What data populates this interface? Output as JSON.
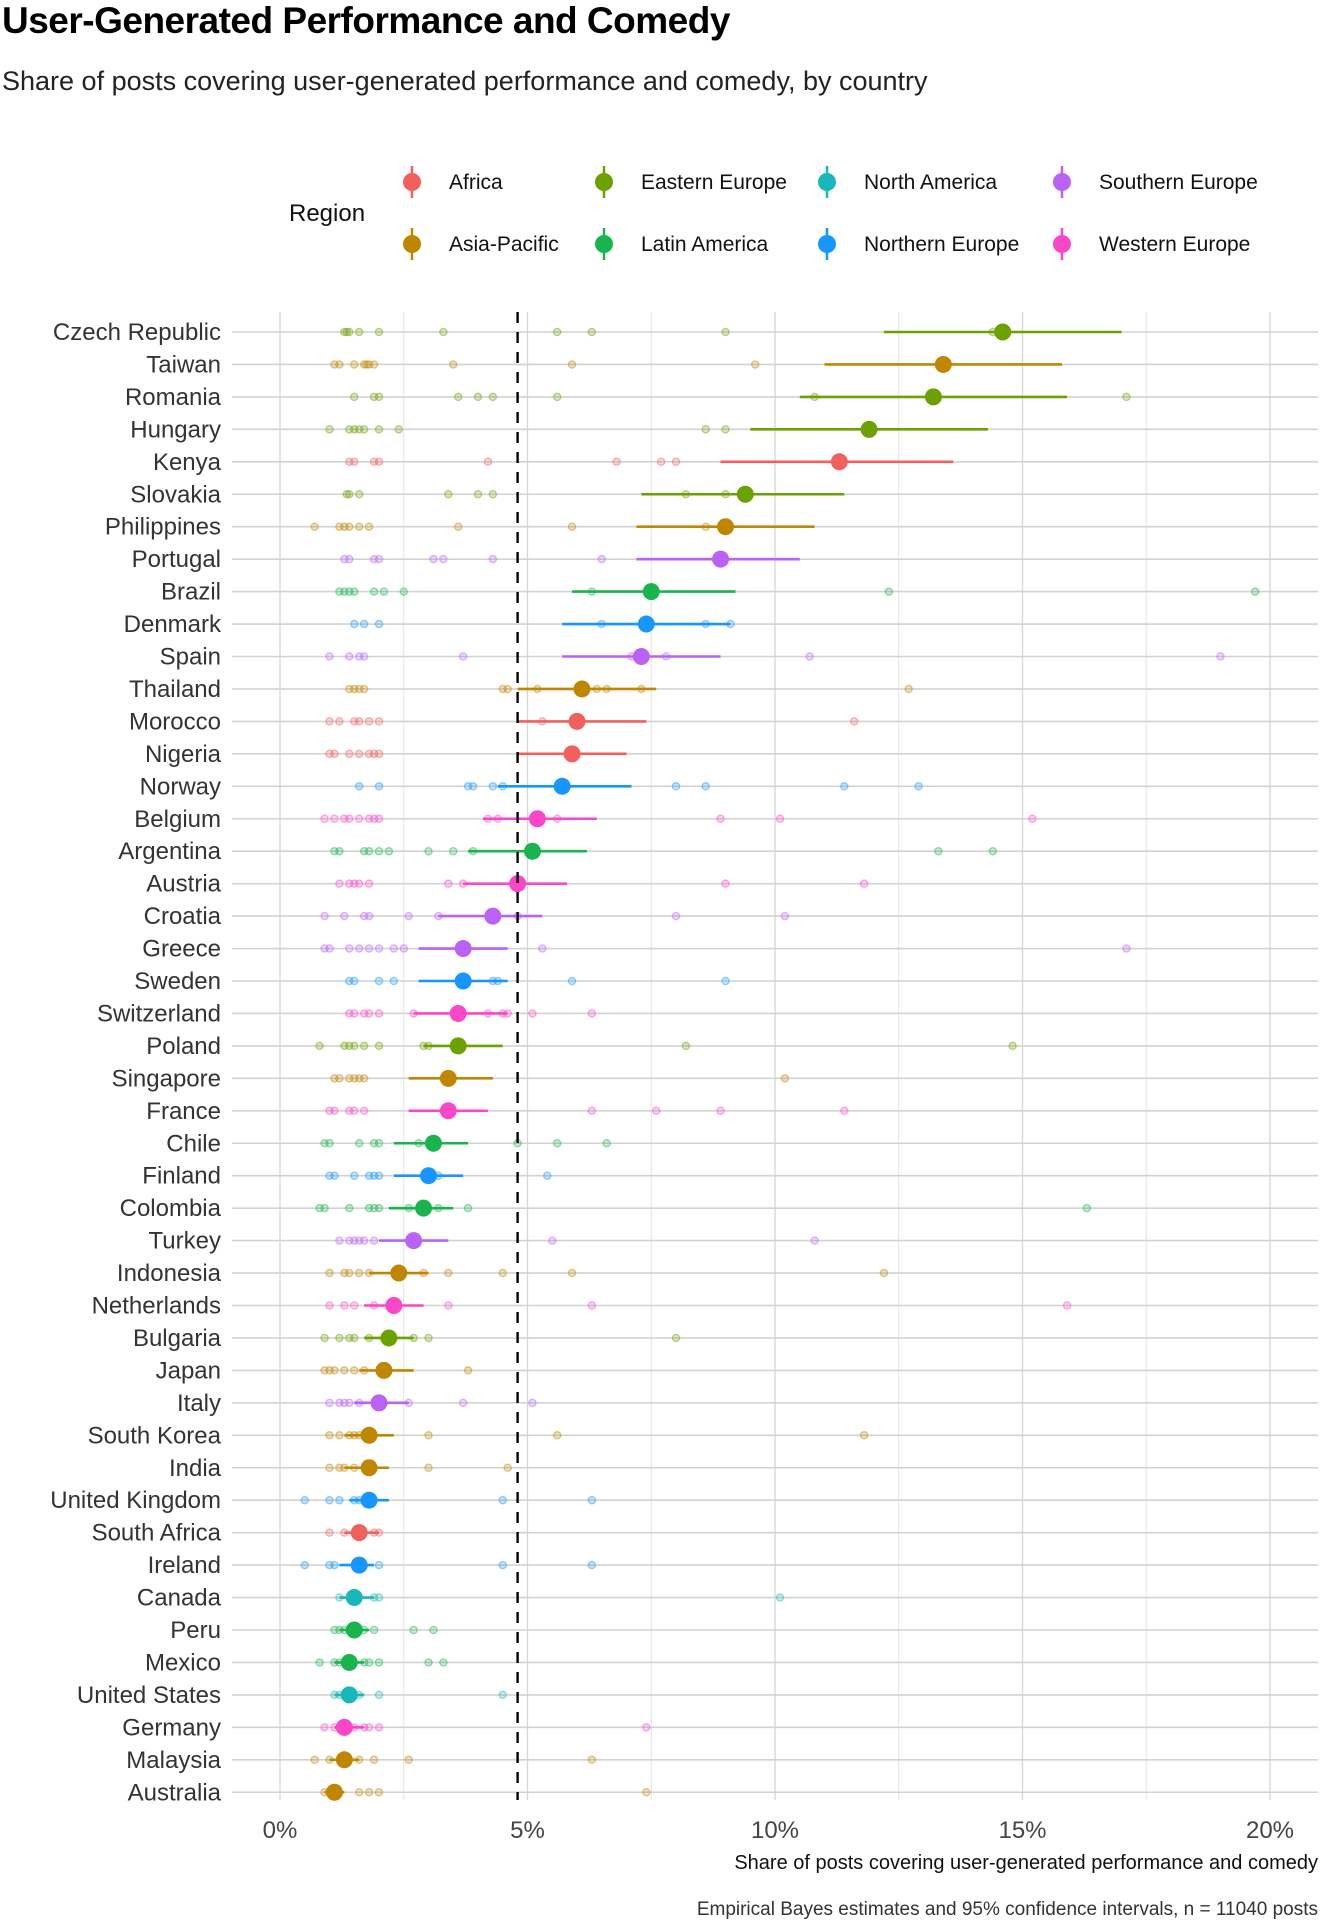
{
  "chart_data": {
    "type": "scatter",
    "title": "User-Generated Performance and Comedy",
    "subtitle": "Share of posts covering user-generated performance and comedy, by country",
    "xlabel": "Share of posts covering user-generated performance and comedy",
    "caption": "Empirical Bayes estimates and 95% confidence intervals, n = 11040 posts",
    "xlim": [
      -0.8,
      21
    ],
    "xticks": [
      0,
      5,
      10,
      15,
      20
    ],
    "xtick_labels": [
      "0%",
      "5%",
      "10%",
      "15%",
      "20%"
    ],
    "reference_line": 4.8,
    "grid": true,
    "legend": {
      "title": "Region",
      "placement": "top",
      "entries": [
        {
          "name": "Africa",
          "color": "#F8766D"
        },
        {
          "name": "Asia-Pacific",
          "color": "#C49A00"
        },
        {
          "name": "Eastern Europe",
          "color": "#7CAE00"
        },
        {
          "name": "Latin America",
          "color": "#00C05A"
        },
        {
          "name": "North America",
          "color": "#00BFC4"
        },
        {
          "name": "Northern Europe",
          "color": "#1E90FF"
        },
        {
          "name": "Southern Europe",
          "color": "#C77CFF"
        },
        {
          "name": "Western Europe",
          "color": "#FF4FC4"
        }
      ]
    },
    "colors": {
      "Africa": "#F0605D",
      "Asia-Pacific": "#C08600",
      "Eastern Europe": "#6BA100",
      "Latin America": "#19B44E",
      "North America": "#18B7BA",
      "Northern Europe": "#1796FF",
      "Southern Europe": "#BA62F6",
      "Western Europe": "#FA46C8"
    },
    "countries": [
      {
        "name": "Czech Republic",
        "region": "Eastern Europe",
        "estimate": 14.6,
        "ci": [
          12.2,
          17.0
        ],
        "points": [
          1.3,
          1.35,
          1.4,
          1.6,
          2.0,
          3.3,
          5.6,
          6.3,
          9.0,
          14.4
        ]
      },
      {
        "name": "Taiwan",
        "region": "Asia-Pacific",
        "estimate": 13.4,
        "ci": [
          11.0,
          15.8
        ],
        "points": [
          1.1,
          1.2,
          1.5,
          1.7,
          1.75,
          1.8,
          1.9,
          3.5,
          5.9,
          9.6
        ]
      },
      {
        "name": "Romania",
        "region": "Eastern Europe",
        "estimate": 13.2,
        "ci": [
          10.5,
          15.9
        ],
        "points": [
          1.5,
          1.9,
          2.0,
          3.6,
          4.0,
          4.3,
          5.6,
          10.8,
          17.1
        ]
      },
      {
        "name": "Hungary",
        "region": "Eastern Europe",
        "estimate": 11.9,
        "ci": [
          9.5,
          14.3
        ],
        "points": [
          1.0,
          1.4,
          1.5,
          1.6,
          1.7,
          2.0,
          2.4,
          8.6,
          9.0
        ]
      },
      {
        "name": "Kenya",
        "region": "Africa",
        "estimate": 11.3,
        "ci": [
          8.9,
          13.6
        ],
        "points": [
          1.4,
          1.5,
          1.9,
          2.0,
          4.2,
          6.8,
          7.7,
          8.0
        ]
      },
      {
        "name": "Slovakia",
        "region": "Eastern Europe",
        "estimate": 9.4,
        "ci": [
          7.3,
          11.4
        ],
        "points": [
          1.35,
          1.4,
          1.6,
          3.4,
          4.0,
          4.3,
          8.2,
          9.0
        ]
      },
      {
        "name": "Philippines",
        "region": "Asia-Pacific",
        "estimate": 9.0,
        "ci": [
          7.2,
          10.8
        ],
        "points": [
          0.7,
          1.2,
          1.3,
          1.4,
          1.6,
          1.8,
          3.6,
          5.9,
          8.6
        ]
      },
      {
        "name": "Portugal",
        "region": "Southern Europe",
        "estimate": 8.9,
        "ci": [
          7.2,
          10.5
        ],
        "points": [
          1.3,
          1.4,
          1.9,
          2.0,
          3.1,
          3.3,
          4.3,
          6.5
        ]
      },
      {
        "name": "Brazil",
        "region": "Latin America",
        "estimate": 7.5,
        "ci": [
          5.9,
          9.2
        ],
        "points": [
          1.2,
          1.3,
          1.4,
          1.5,
          1.9,
          2.1,
          2.5,
          6.3,
          12.3,
          19.7
        ]
      },
      {
        "name": "Denmark",
        "region": "Northern Europe",
        "estimate": 7.4,
        "ci": [
          5.7,
          9.1
        ],
        "points": [
          1.5,
          1.7,
          2.0,
          6.5,
          8.6,
          9.1
        ]
      },
      {
        "name": "Spain",
        "region": "Southern Europe",
        "estimate": 7.3,
        "ci": [
          5.7,
          8.9
        ],
        "points": [
          1.0,
          1.4,
          1.6,
          1.7,
          3.7,
          7.1,
          7.8,
          10.7,
          19.0
        ]
      },
      {
        "name": "Thailand",
        "region": "Asia-Pacific",
        "estimate": 6.1,
        "ci": [
          4.8,
          7.6
        ],
        "points": [
          1.4,
          1.5,
          1.6,
          1.7,
          4.5,
          4.6,
          5.2,
          6.4,
          6.6,
          7.3,
          12.7
        ]
      },
      {
        "name": "Morocco",
        "region": "Africa",
        "estimate": 6.0,
        "ci": [
          4.8,
          7.4
        ],
        "points": [
          1.0,
          1.2,
          1.5,
          1.6,
          1.8,
          2.0,
          5.3,
          11.6
        ]
      },
      {
        "name": "Nigeria",
        "region": "Africa",
        "estimate": 5.9,
        "ci": [
          4.8,
          7.0
        ],
        "points": [
          1.0,
          1.1,
          1.4,
          1.6,
          1.8,
          1.9,
          2.0
        ]
      },
      {
        "name": "Norway",
        "region": "Northern Europe",
        "estimate": 5.7,
        "ci": [
          4.4,
          7.1
        ],
        "points": [
          1.6,
          2.0,
          3.8,
          3.9,
          4.3,
          4.5,
          8.0,
          8.6,
          11.4,
          12.9
        ]
      },
      {
        "name": "Belgium",
        "region": "Western Europe",
        "estimate": 5.2,
        "ci": [
          4.1,
          6.4
        ],
        "points": [
          0.9,
          1.1,
          1.3,
          1.4,
          1.6,
          1.8,
          1.9,
          2.0,
          4.2,
          4.4,
          5.6,
          8.9,
          10.1,
          15.2
        ]
      },
      {
        "name": "Argentina",
        "region": "Latin America",
        "estimate": 5.1,
        "ci": [
          3.8,
          6.2
        ],
        "points": [
          1.1,
          1.2,
          1.7,
          1.8,
          2.0,
          2.2,
          3.0,
          3.5,
          3.9,
          13.3,
          14.4
        ]
      },
      {
        "name": "Austria",
        "region": "Western Europe",
        "estimate": 4.8,
        "ci": [
          3.7,
          5.8
        ],
        "points": [
          1.2,
          1.4,
          1.5,
          1.6,
          1.8,
          3.4,
          3.7,
          9.0,
          11.8
        ]
      },
      {
        "name": "Croatia",
        "region": "Southern Europe",
        "estimate": 4.3,
        "ci": [
          3.2,
          5.3
        ],
        "points": [
          0.9,
          1.3,
          1.7,
          1.8,
          2.6,
          3.2,
          4.8,
          8.0,
          10.2
        ]
      },
      {
        "name": "Greece",
        "region": "Southern Europe",
        "estimate": 3.7,
        "ci": [
          2.8,
          4.6
        ],
        "points": [
          0.9,
          1.0,
          1.4,
          1.6,
          1.8,
          2.0,
          2.3,
          2.5,
          5.3,
          17.1
        ]
      },
      {
        "name": "Sweden",
        "region": "Northern Europe",
        "estimate": 3.7,
        "ci": [
          2.8,
          4.6
        ],
        "points": [
          1.4,
          1.5,
          2.0,
          2.3,
          4.3,
          4.4,
          5.9,
          9.0
        ]
      },
      {
        "name": "Switzerland",
        "region": "Western Europe",
        "estimate": 3.6,
        "ci": [
          2.7,
          4.6
        ],
        "points": [
          1.4,
          1.5,
          1.7,
          1.8,
          2.0,
          2.7,
          4.2,
          4.5,
          4.6,
          5.1,
          6.3
        ]
      },
      {
        "name": "Poland",
        "region": "Eastern Europe",
        "estimate": 3.6,
        "ci": [
          2.9,
          4.5
        ],
        "points": [
          0.8,
          1.3,
          1.4,
          1.5,
          1.7,
          2.0,
          2.9,
          3.0,
          8.2,
          14.8
        ]
      },
      {
        "name": "Singapore",
        "region": "Asia-Pacific",
        "estimate": 3.4,
        "ci": [
          2.6,
          4.3
        ],
        "points": [
          1.1,
          1.2,
          1.4,
          1.5,
          1.6,
          1.7,
          10.2
        ]
      },
      {
        "name": "France",
        "region": "Western Europe",
        "estimate": 3.4,
        "ci": [
          2.6,
          4.2
        ],
        "points": [
          1.0,
          1.1,
          1.4,
          1.5,
          1.7,
          6.3,
          7.6,
          8.9,
          11.4
        ]
      },
      {
        "name": "Chile",
        "region": "Latin America",
        "estimate": 3.1,
        "ci": [
          2.3,
          3.8
        ],
        "points": [
          0.9,
          1.0,
          1.6,
          1.9,
          2.0,
          2.8,
          4.8,
          5.6,
          6.6
        ]
      },
      {
        "name": "Finland",
        "region": "Northern Europe",
        "estimate": 3.0,
        "ci": [
          2.3,
          3.7
        ],
        "points": [
          1.0,
          1.1,
          1.5,
          1.8,
          1.9,
          2.0,
          3.2,
          5.4
        ]
      },
      {
        "name": "Colombia",
        "region": "Latin America",
        "estimate": 2.9,
        "ci": [
          2.2,
          3.5
        ],
        "points": [
          0.8,
          0.9,
          1.4,
          1.8,
          1.9,
          2.0,
          2.6,
          3.2,
          3.8,
          16.3
        ]
      },
      {
        "name": "Turkey",
        "region": "Southern Europe",
        "estimate": 2.7,
        "ci": [
          2.0,
          3.4
        ],
        "points": [
          1.2,
          1.4,
          1.5,
          1.6,
          1.7,
          1.9,
          5.5,
          10.8
        ]
      },
      {
        "name": "Indonesia",
        "region": "Asia-Pacific",
        "estimate": 2.4,
        "ci": [
          1.8,
          3.0
        ],
        "points": [
          1.0,
          1.3,
          1.4,
          1.6,
          1.8,
          2.9,
          3.4,
          4.5,
          5.9,
          12.2
        ]
      },
      {
        "name": "Netherlands",
        "region": "Western Europe",
        "estimate": 2.3,
        "ci": [
          1.7,
          2.9
        ],
        "points": [
          1.0,
          1.3,
          1.5,
          1.9,
          3.4,
          6.3,
          15.9
        ]
      },
      {
        "name": "Bulgaria",
        "region": "Eastern Europe",
        "estimate": 2.2,
        "ci": [
          1.7,
          2.7
        ],
        "points": [
          0.9,
          1.2,
          1.4,
          1.5,
          1.8,
          2.7,
          3.0,
          8.0
        ]
      },
      {
        "name": "Japan",
        "region": "Asia-Pacific",
        "estimate": 2.1,
        "ci": [
          1.6,
          2.7
        ],
        "points": [
          0.9,
          1.0,
          1.1,
          1.3,
          1.5,
          1.7,
          3.8
        ]
      },
      {
        "name": "Italy",
        "region": "Southern Europe",
        "estimate": 2.0,
        "ci": [
          1.5,
          2.6
        ],
        "points": [
          1.0,
          1.2,
          1.3,
          1.4,
          1.6,
          2.6,
          3.7,
          5.1
        ]
      },
      {
        "name": "South Korea",
        "region": "Asia-Pacific",
        "estimate": 1.8,
        "ci": [
          1.3,
          2.3
        ],
        "points": [
          1.0,
          1.2,
          1.4,
          1.5,
          1.6,
          3.0,
          5.6,
          11.8
        ]
      },
      {
        "name": "India",
        "region": "Asia-Pacific",
        "estimate": 1.8,
        "ci": [
          1.3,
          2.2
        ],
        "points": [
          1.0,
          1.2,
          1.3,
          1.5,
          1.8,
          3.0,
          4.6
        ]
      },
      {
        "name": "United Kingdom",
        "region": "Northern Europe",
        "estimate": 1.8,
        "ci": [
          1.4,
          2.2
        ],
        "points": [
          0.5,
          1.0,
          1.2,
          1.5,
          1.6,
          4.5,
          6.3
        ]
      },
      {
        "name": "South Africa",
        "region": "Africa",
        "estimate": 1.6,
        "ci": [
          1.3,
          2.0
        ],
        "points": [
          1.0,
          1.3,
          1.9,
          2.0
        ]
      },
      {
        "name": "Ireland",
        "region": "Northern Europe",
        "estimate": 1.6,
        "ci": [
          1.2,
          1.9
        ],
        "points": [
          0.5,
          1.0,
          1.1,
          2.0,
          4.5,
          6.3
        ]
      },
      {
        "name": "Canada",
        "region": "North America",
        "estimate": 1.5,
        "ci": [
          1.2,
          1.9
        ],
        "points": [
          1.2,
          1.9,
          2.0,
          10.1
        ]
      },
      {
        "name": "Peru",
        "region": "Latin America",
        "estimate": 1.5,
        "ci": [
          1.2,
          1.8
        ],
        "points": [
          1.1,
          1.2,
          1.3,
          1.7,
          1.9,
          2.7,
          3.1
        ]
      },
      {
        "name": "Mexico",
        "region": "Latin America",
        "estimate": 1.4,
        "ci": [
          1.1,
          1.7
        ],
        "points": [
          0.8,
          1.1,
          1.2,
          1.7,
          1.8,
          2.0,
          3.0,
          3.3
        ]
      },
      {
        "name": "United States",
        "region": "North America",
        "estimate": 1.4,
        "ci": [
          1.1,
          1.7
        ],
        "points": [
          1.1,
          1.2,
          1.6,
          2.0,
          4.5
        ]
      },
      {
        "name": "Germany",
        "region": "Western Europe",
        "estimate": 1.3,
        "ci": [
          1.1,
          1.7
        ],
        "points": [
          0.9,
          1.1,
          1.2,
          1.5,
          1.7,
          1.8,
          2.0,
          7.4
        ]
      },
      {
        "name": "Malaysia",
        "region": "Asia-Pacific",
        "estimate": 1.3,
        "ci": [
          1.0,
          1.6
        ],
        "points": [
          0.7,
          1.0,
          1.6,
          1.9,
          2.6,
          6.3
        ]
      },
      {
        "name": "Australia",
        "region": "Asia-Pacific",
        "estimate": 1.1,
        "ci": [
          0.9,
          1.3
        ],
        "points": [
          0.9,
          1.0,
          1.6,
          1.8,
          2.0,
          7.4
        ]
      }
    ]
  }
}
